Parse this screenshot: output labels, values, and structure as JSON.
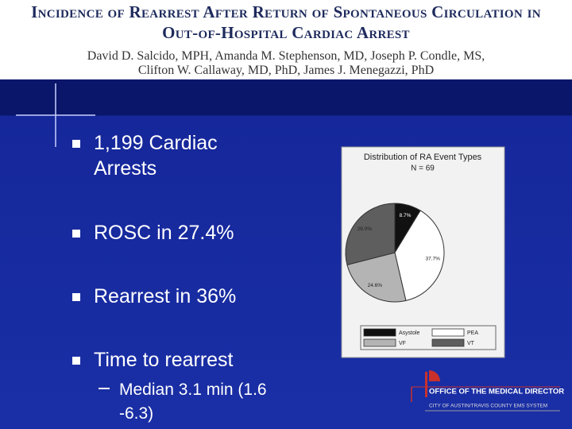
{
  "header": {
    "title_lines": [
      "Incidence of Rearrest After Return of Spontaneous Circulation in",
      "Out-of-Hospital Cardiac Arrest"
    ],
    "author_lines": [
      "David D. Salcido, MPH, Amanda M. Stephenson, MD, Joseph P. Condle, MS,",
      "Clifton W. Callaway, MD, PhD, James J. Menegazzi, PhD"
    ]
  },
  "bullets": [
    "1,199 Cardiac Arrests",
    "ROSC in 27.4%",
    "Rearrest in 36%",
    "Time to rearrest"
  ],
  "sub_bullet": "Median 3.1 min (1.6 -6.3)",
  "chart_data": {
    "type": "pie",
    "title": "Distribution of RA Event Types",
    "subtitle": "N = 69",
    "categories": [
      "Asystole",
      "PEA",
      "VF",
      "VT"
    ],
    "values": [
      8.7,
      37.7,
      24.6,
      29
    ],
    "value_labels": [
      "8.7%",
      "37.7%",
      "24.6%",
      "29.0%"
    ],
    "colors": [
      "#111111",
      "#ffffff",
      "#b4b4b4",
      "#5e5e5e"
    ]
  },
  "logo": {
    "line1": "Office of the Medical Director",
    "line2": "City of Austin/Travis County EMS System"
  }
}
